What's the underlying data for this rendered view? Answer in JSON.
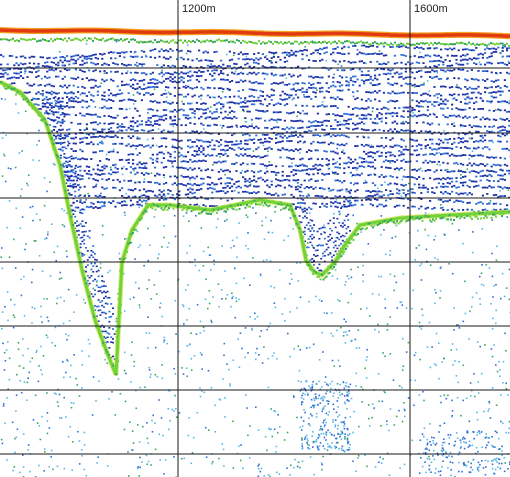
{
  "echogram": {
    "range_labels": [
      "1200m",
      "1600m"
    ],
    "colors": {
      "background": "#ffffff",
      "grid": "#1a1a1a",
      "surface_line": "#e03a10",
      "surface_line_edge": "#f5a020",
      "bottom_echo": "#72d23a",
      "bottom_echo_edge": "#c8e63a",
      "layer_dark": "#1c2fa6",
      "layer_mid": "#2f6fd6",
      "scatter_light": "#5ab8e8",
      "scatter_green": "#3aa860"
    }
  }
}
